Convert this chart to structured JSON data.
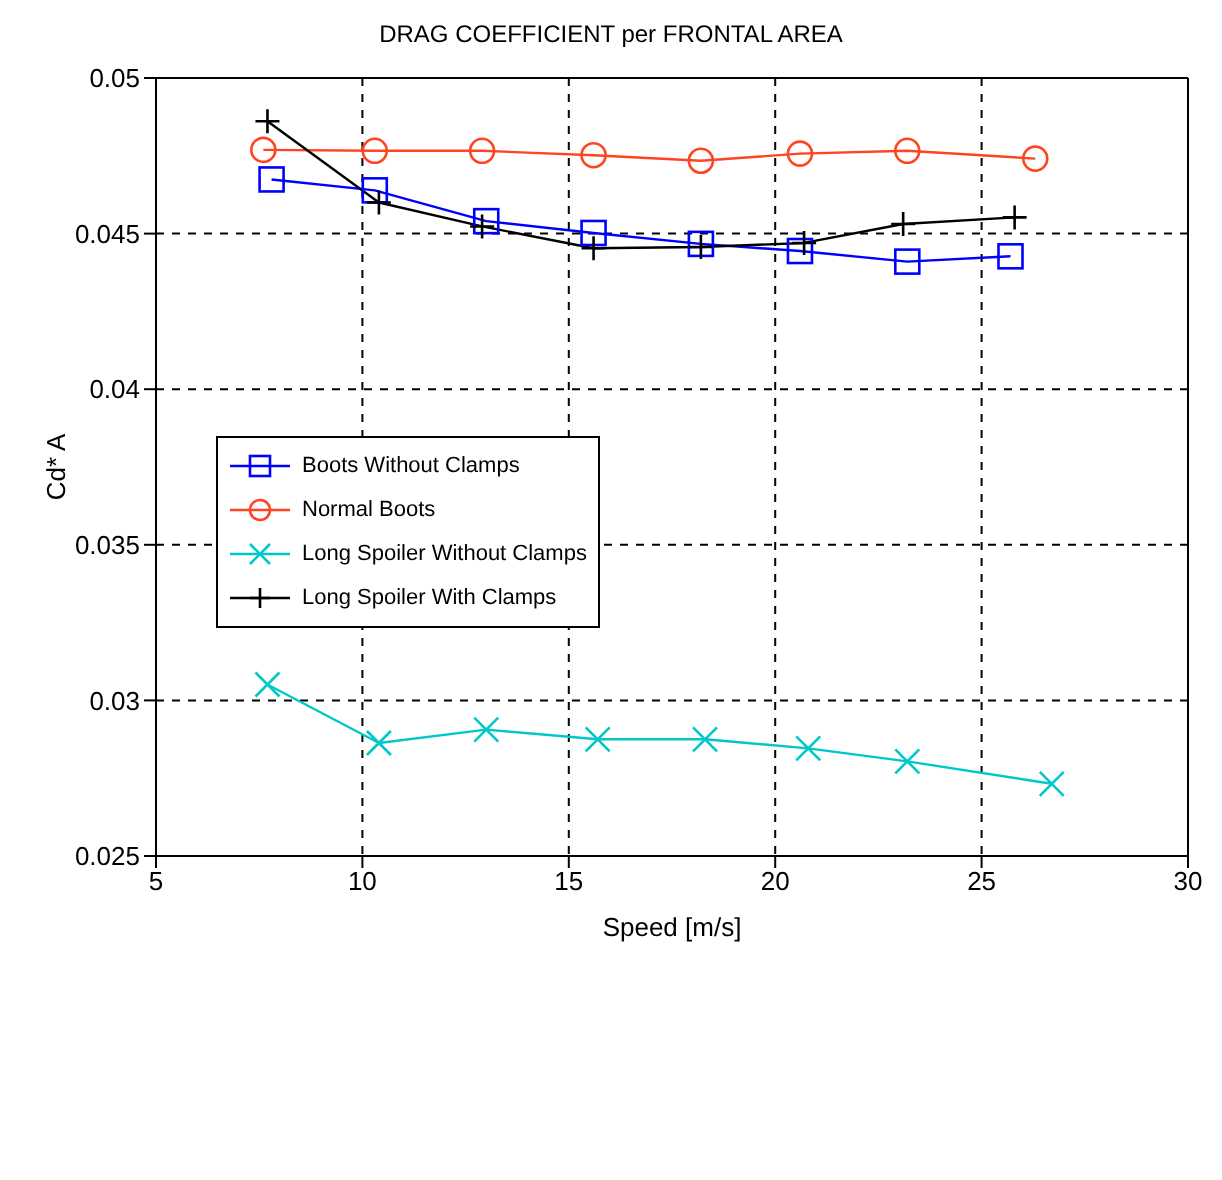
{
  "chart_data": {
    "type": "line",
    "title": "DRAG COEFFICIENT per FRONTAL AREA",
    "xlabel": "Speed [m/s]",
    "ylabel": "Cd* A",
    "xlim": [
      5,
      30
    ],
    "xticks": [
      5,
      10,
      15,
      20,
      25,
      30
    ],
    "ylim": [
      0.025,
      0.05
    ],
    "yticks": [
      0.025,
      0.03,
      0.035,
      0.04,
      0.045,
      0.05
    ],
    "grid": true,
    "legend": "left",
    "series": [
      {
        "name": "Boots Without Clamps",
        "color": "#0000ff",
        "marker": "square",
        "x": [
          7.8,
          10.3,
          13.0,
          15.6,
          18.2,
          20.6,
          23.2,
          25.7
        ],
        "values": [
          0.04674,
          0.04639,
          0.0454,
          0.04502,
          0.04467,
          0.04444,
          0.0441,
          0.04427
        ]
      },
      {
        "name": "Normal Boots",
        "color": "#ff4422",
        "marker": "circle",
        "x": [
          7.6,
          10.3,
          12.9,
          15.6,
          18.2,
          20.6,
          23.2,
          26.3
        ],
        "values": [
          0.04769,
          0.04766,
          0.04766,
          0.04752,
          0.04734,
          0.04757,
          0.04766,
          0.04741
        ]
      },
      {
        "name": "Long Spoiler Without Clamps",
        "color": "#00c8c8",
        "marker": "cross",
        "x": [
          7.7,
          10.4,
          13.0,
          15.7,
          18.3,
          20.8,
          23.2,
          26.7
        ],
        "values": [
          0.03051,
          0.02863,
          0.02906,
          0.02875,
          0.02875,
          0.02846,
          0.02804,
          0.02732
        ]
      },
      {
        "name": "Long Spoiler With Clamps",
        "color": "#000000",
        "marker": "plus",
        "x": [
          7.7,
          10.4,
          12.9,
          15.6,
          18.2,
          20.7,
          23.1,
          25.8
        ],
        "values": [
          0.04861,
          0.046,
          0.04523,
          0.04453,
          0.04457,
          0.0447,
          0.04531,
          0.04552
        ]
      }
    ]
  }
}
